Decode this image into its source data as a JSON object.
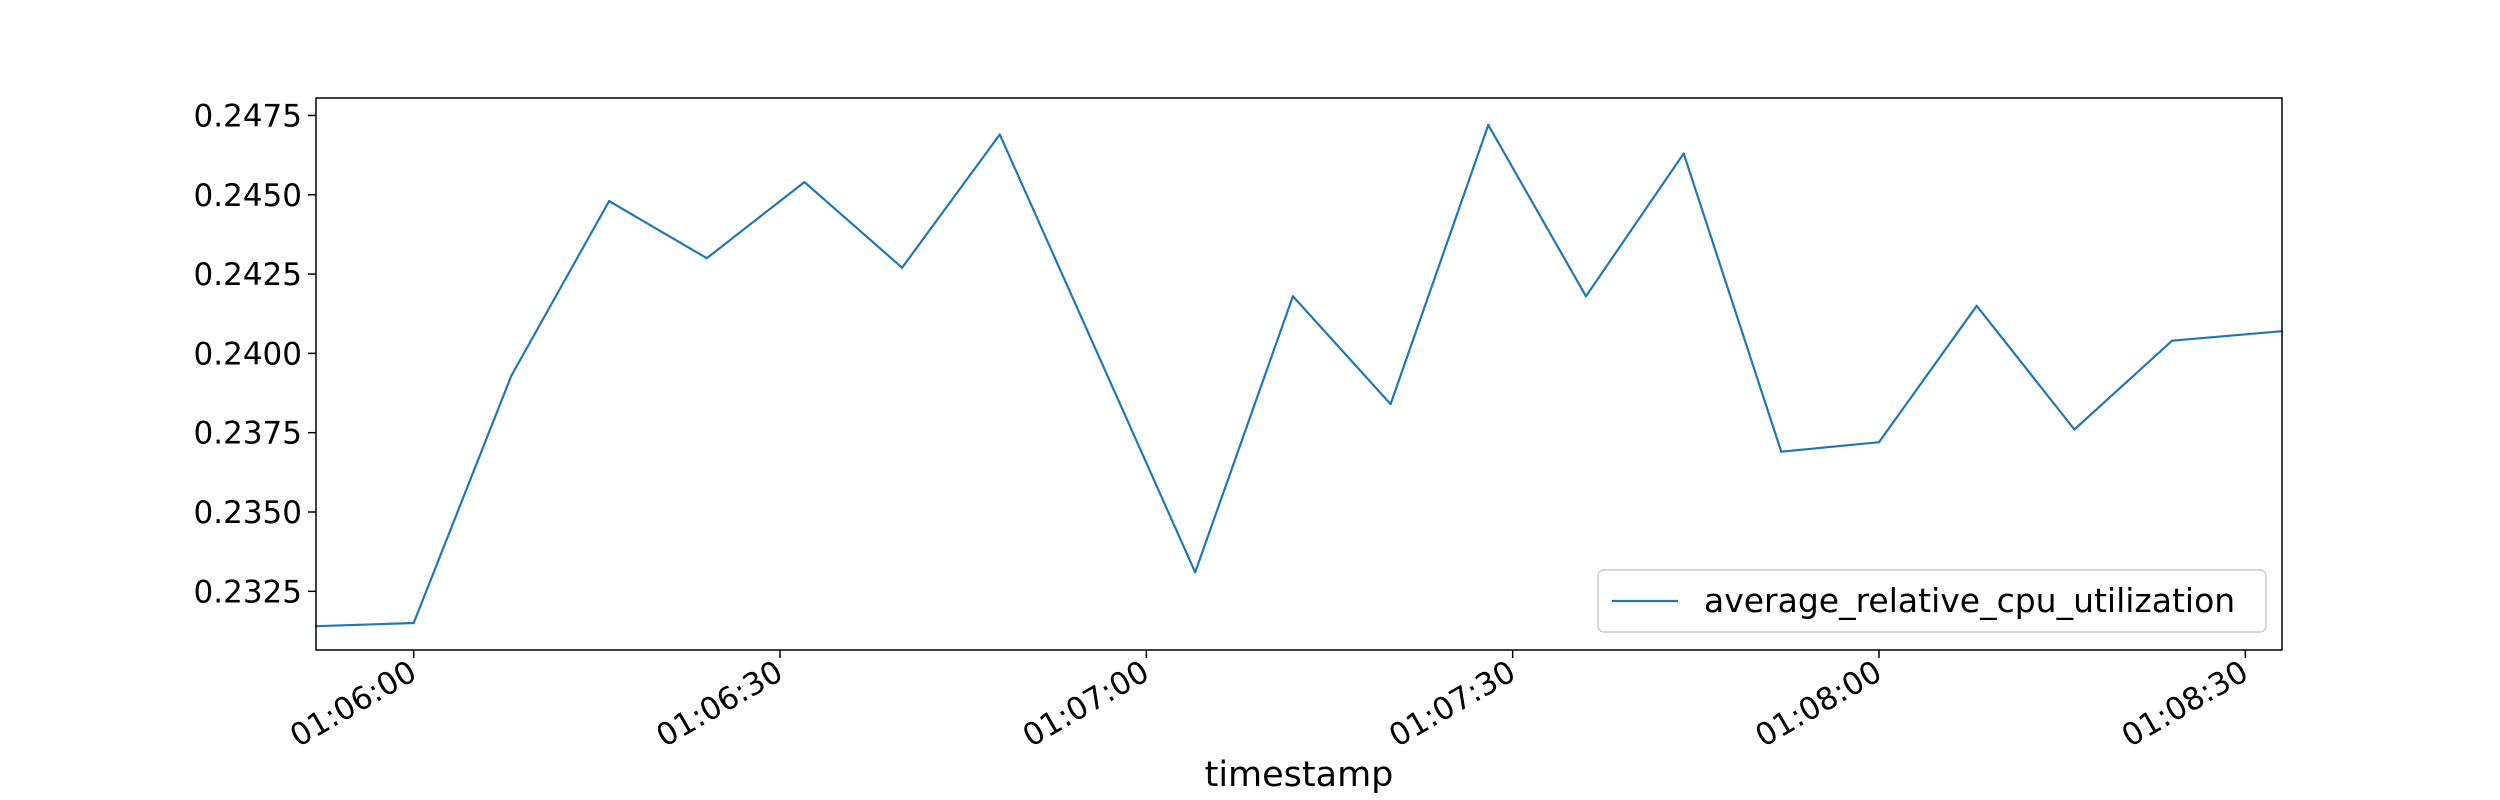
{
  "chart_data": {
    "type": "line",
    "title": "",
    "xlabel": "timestamp",
    "ylabel": "",
    "x": [
      "01:05:52",
      "01:06:00",
      "01:06:08",
      "01:06:16",
      "01:06:24",
      "01:06:32",
      "01:06:40",
      "01:06:48",
      "01:06:56",
      "01:07:04",
      "01:07:12",
      "01:07:20",
      "01:07:28",
      "01:07:36",
      "01:07:44",
      "01:07:52",
      "01:08:00",
      "01:08:08",
      "01:08:16",
      "01:08:24",
      "01:08:33"
    ],
    "series": [
      {
        "name": "average_relative_cpu_utilization",
        "color": "#1f77b4",
        "values": [
          0.2314,
          0.2315,
          0.2393,
          0.2448,
          0.243,
          0.2454,
          0.2427,
          0.2469,
          0.24,
          0.2331,
          0.2418,
          0.2384,
          0.2472,
          0.2418,
          0.2463,
          0.2369,
          0.2372,
          0.2415,
          0.2376,
          0.2404,
          0.2407
        ]
      }
    ],
    "xlim": [
      "01:05:52",
      "01:08:33"
    ],
    "ylim": [
      0.23065,
      0.24805
    ],
    "xticks": [
      "01:06:00",
      "01:06:30",
      "01:07:00",
      "01:07:30",
      "01:08:00",
      "01:08:30"
    ],
    "yticks": [
      "0.2325",
      "0.2350",
      "0.2375",
      "0.2400",
      "0.2425",
      "0.2450",
      "0.2475"
    ],
    "grid": false,
    "legend_position": "lower-right"
  }
}
